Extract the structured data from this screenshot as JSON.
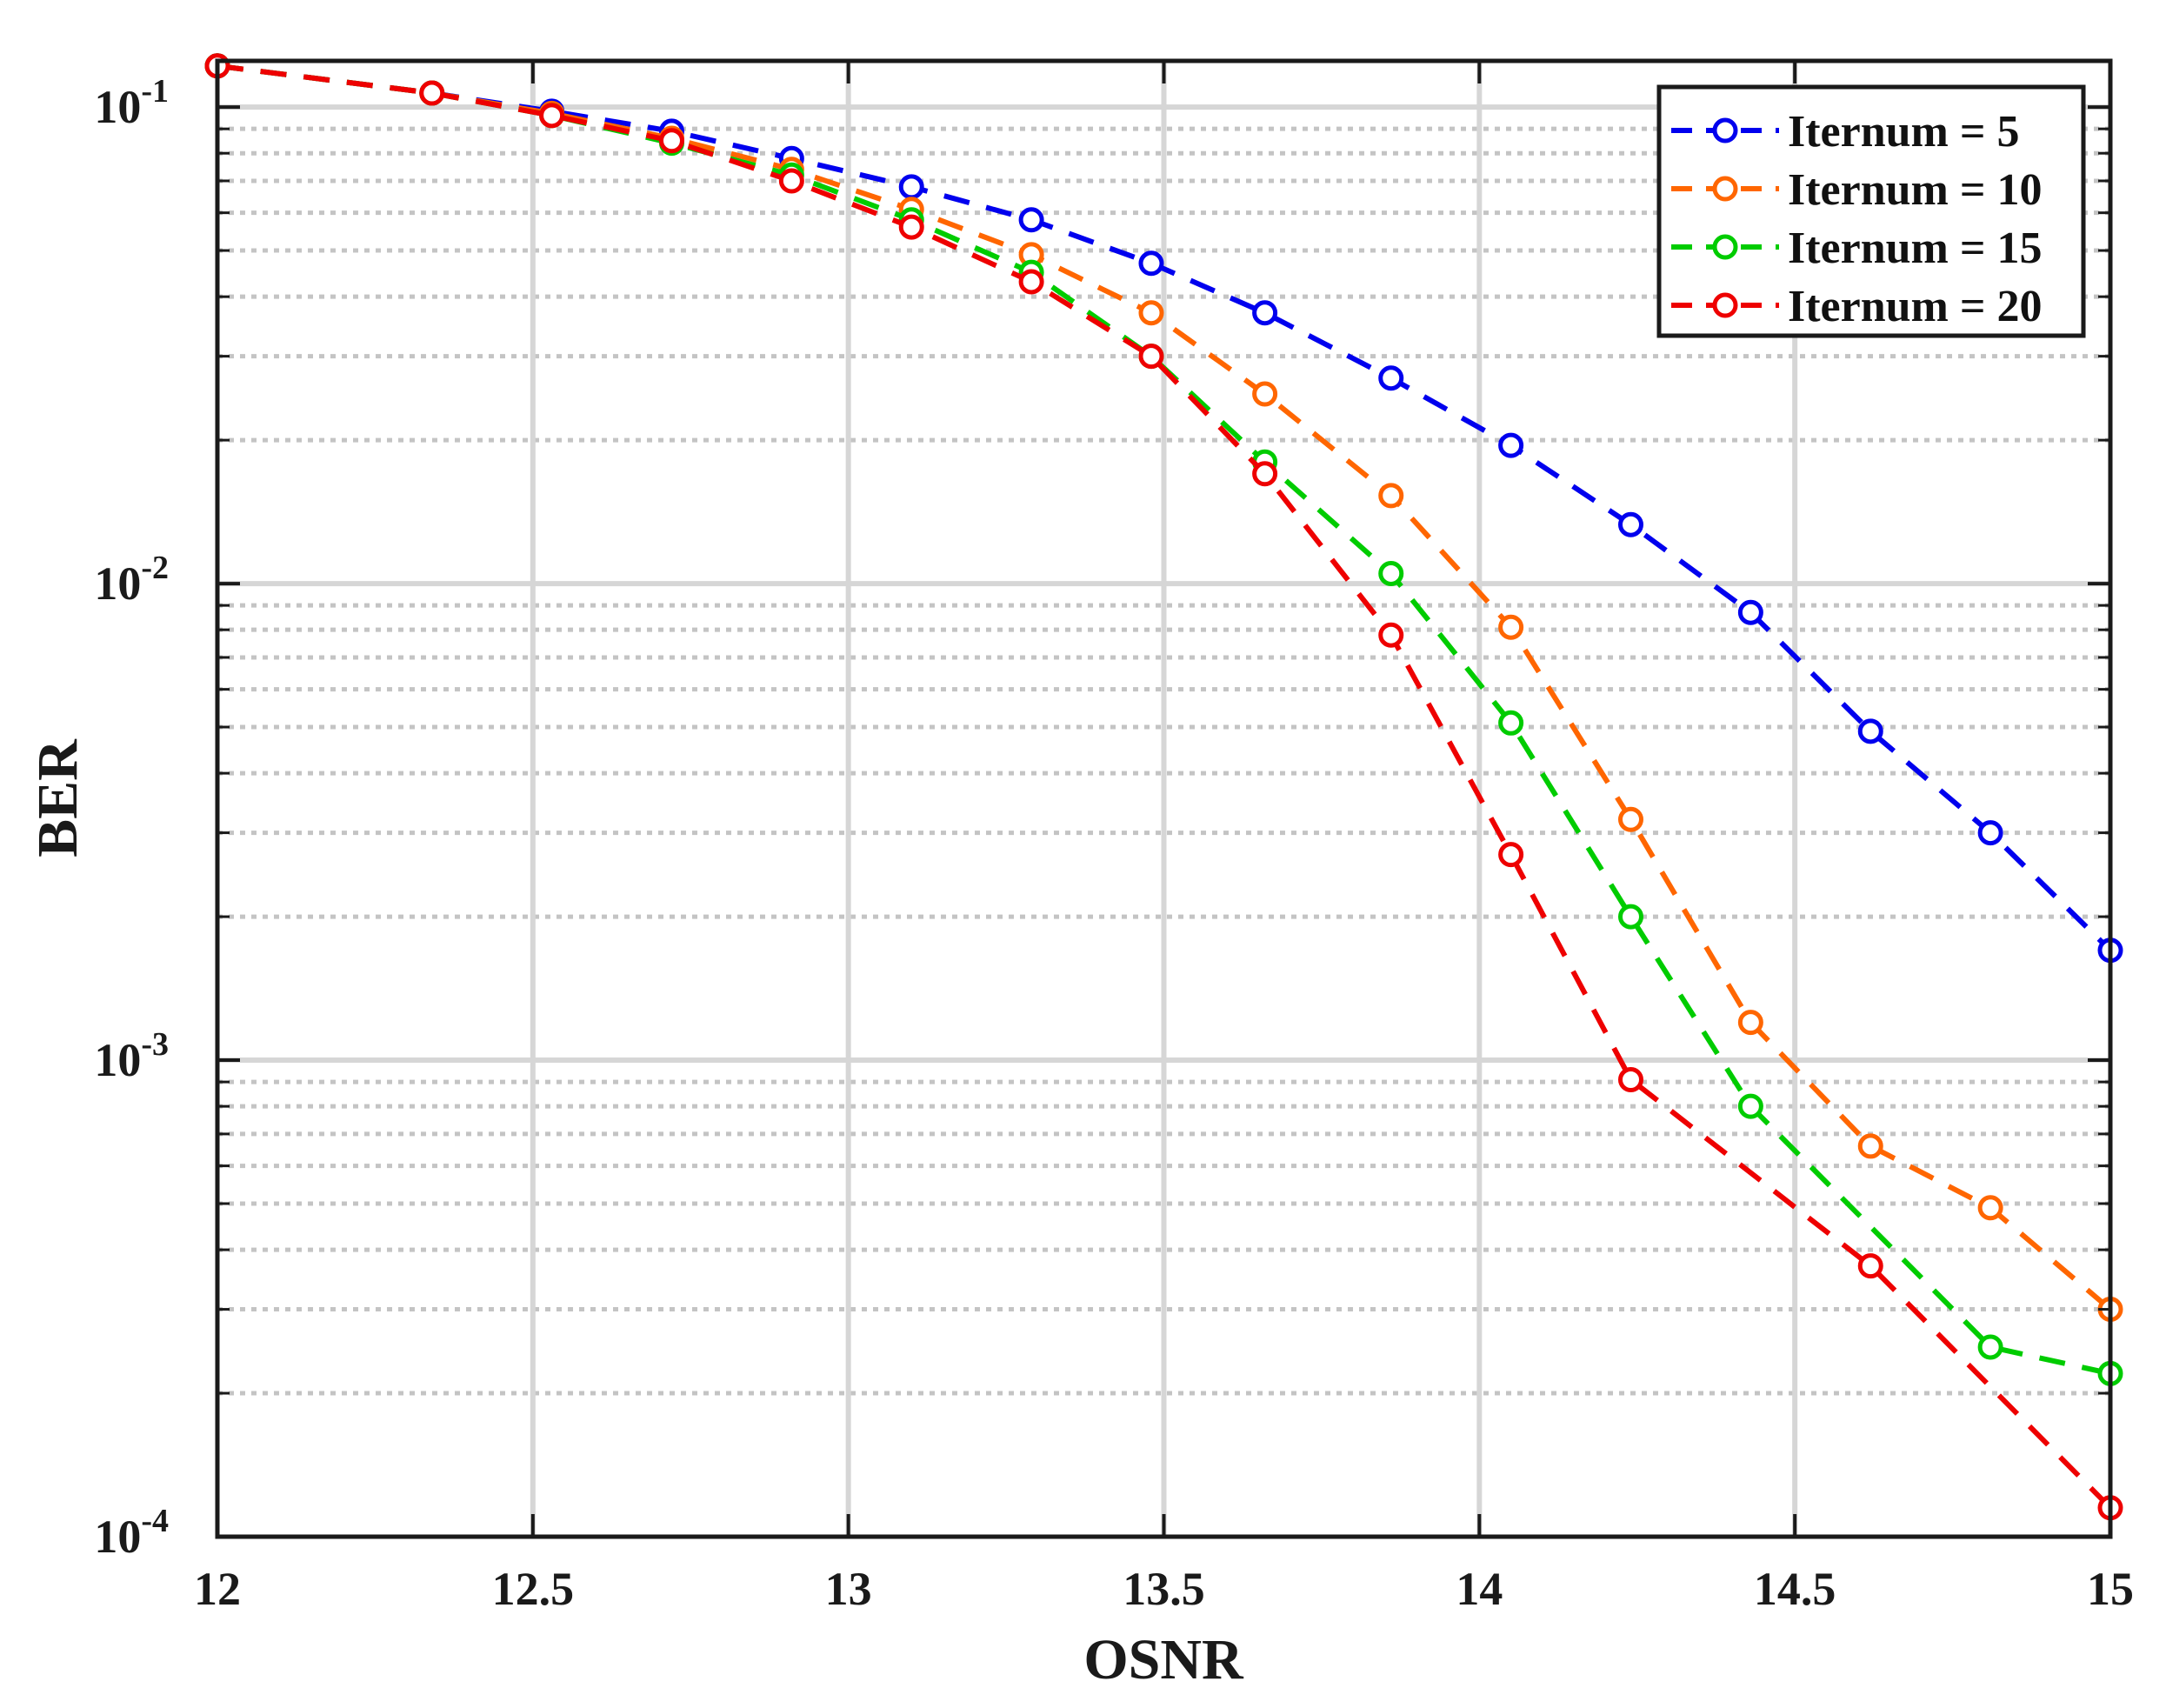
{
  "chart_data": {
    "type": "line",
    "title": "",
    "xlabel": "OSNR",
    "ylabel": "BER",
    "xlim": [
      12,
      15
    ],
    "ylim": [
      0.0001,
      0.125
    ],
    "yscale": "log",
    "grid": true,
    "legend_position": "top-right",
    "xticks": [
      12,
      12.5,
      13,
      13.5,
      14,
      14.5,
      15
    ],
    "xtick_labels": [
      "12",
      "12.5",
      "13",
      "13.5",
      "14",
      "14.5",
      "15"
    ],
    "yticks": [
      {
        "value": 0.1,
        "base": "10",
        "exp": "-1"
      },
      {
        "value": 0.01,
        "base": "10",
        "exp": "-2"
      },
      {
        "value": 0.001,
        "base": "10",
        "exp": "-3"
      },
      {
        "value": 0.0001,
        "base": "10",
        "exp": "-4"
      }
    ],
    "x": [
      12.0,
      12.34,
      12.53,
      12.72,
      12.91,
      13.1,
      13.29,
      13.48,
      13.66,
      13.86,
      14.05,
      14.24,
      14.43,
      14.62,
      14.81,
      15.0
    ],
    "series": [
      {
        "name": "Iternum = 5",
        "color": "#0000ee",
        "values": [
          0.122,
          0.107,
          0.098,
          0.089,
          0.078,
          0.068,
          0.058,
          0.047,
          0.037,
          0.027,
          0.0195,
          0.0133,
          0.0087,
          0.0049,
          0.003,
          0.0017
        ]
      },
      {
        "name": "Iternum = 10",
        "color": "#ff6600",
        "values": [
          0.122,
          0.107,
          0.097,
          0.086,
          0.074,
          0.061,
          0.049,
          0.037,
          0.025,
          0.0153,
          0.0081,
          0.0032,
          0.0012,
          0.00066,
          0.00049,
          0.0003
        ]
      },
      {
        "name": "Iternum = 15",
        "color": "#00cc00",
        "values": [
          0.122,
          0.107,
          0.096,
          0.084,
          0.072,
          0.058,
          0.045,
          0.03,
          0.018,
          0.0105,
          0.0051,
          0.002,
          0.0008,
          null,
          0.00025,
          0.00022
        ]
      },
      {
        "name": "Iternum = 20",
        "color": "#ee0000",
        "values": [
          0.122,
          0.107,
          0.096,
          0.085,
          0.07,
          0.056,
          0.043,
          0.03,
          0.017,
          0.0078,
          0.0027,
          0.00091,
          null,
          0.00037,
          null,
          0.000115
        ]
      }
    ]
  }
}
